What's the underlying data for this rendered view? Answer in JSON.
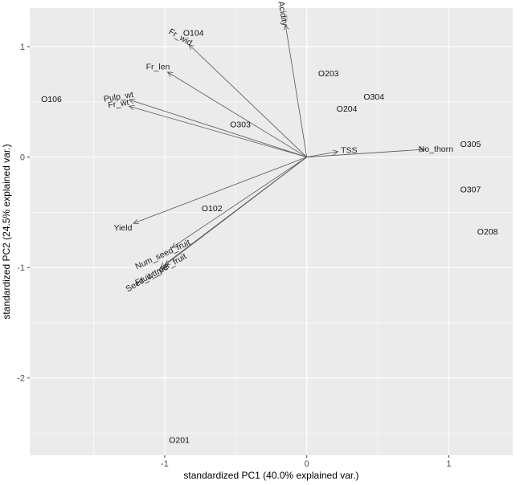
{
  "chart_data": {
    "type": "scatter",
    "subtype": "pca-biplot",
    "xlabel": "standardized PC1 (40.0% explained var.)",
    "ylabel": "standardized PC2 (24.5% explained var.)",
    "xlim": [
      -1.95,
      1.45
    ],
    "ylim": [
      -2.7,
      1.35
    ],
    "xticks": [
      -1,
      0,
      1
    ],
    "yticks": [
      -2,
      -1,
      0,
      1
    ],
    "panel_background": "#ebebeb",
    "grid_color": "#ffffff",
    "grid": true,
    "points": [
      {
        "label": "O104",
        "x": -0.87,
        "y": 1.13
      },
      {
        "label": "O106",
        "x": -1.87,
        "y": 0.53
      },
      {
        "label": "O203",
        "x": 0.08,
        "y": 0.76
      },
      {
        "label": "O304",
        "x": 0.4,
        "y": 0.55
      },
      {
        "label": "O204",
        "x": 0.21,
        "y": 0.44
      },
      {
        "label": "O303",
        "x": -0.54,
        "y": 0.3
      },
      {
        "label": "O305",
        "x": 1.08,
        "y": 0.12
      },
      {
        "label": "O307",
        "x": 1.08,
        "y": -0.29
      },
      {
        "label": "O208",
        "x": 1.2,
        "y": -0.67
      },
      {
        "label": "O102",
        "x": -0.74,
        "y": -0.46
      },
      {
        "label": "O201",
        "x": -0.97,
        "y": -2.56
      }
    ],
    "loadings": [
      {
        "name": "Pulp_wt",
        "x": -1.25,
        "y": 0.52,
        "angle": -9
      },
      {
        "name": "Fr_wt",
        "x": -1.25,
        "y": 0.46,
        "angle": -8
      },
      {
        "name": "Fr_len",
        "x": -0.98,
        "y": 0.77,
        "angle": 0
      },
      {
        "name": "Fr_wid",
        "x": -0.83,
        "y": 1.02,
        "angle": 30
      },
      {
        "name": "Acidity",
        "x": -0.15,
        "y": 1.2,
        "angle": 80
      },
      {
        "name": "TSS",
        "x": 0.22,
        "y": 0.05,
        "angle": 0
      },
      {
        "name": "No_thorn",
        "x": 0.83,
        "y": 0.07,
        "angle": 0
      },
      {
        "name": "Yield",
        "x": -1.22,
        "y": -0.6,
        "angle": 0
      },
      {
        "name": "Num_seed_fruit",
        "x": -0.95,
        "y": -0.82,
        "angle": -25
      },
      {
        "name": "Seed_wt_per_fruit",
        "x": -1.0,
        "y": -0.98,
        "angle": -30
      },
      {
        "name": "Fruit_tree",
        "x": -1.03,
        "y": -1.0,
        "angle": -28
      }
    ]
  }
}
